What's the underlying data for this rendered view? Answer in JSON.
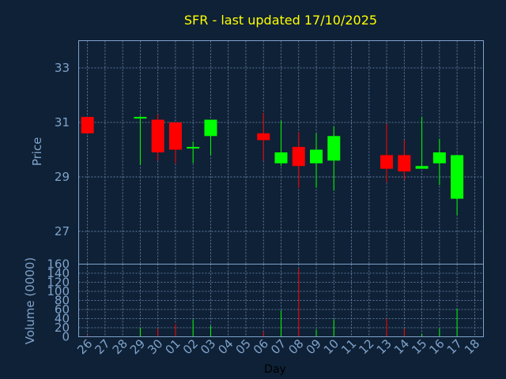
{
  "chart_data": [
    {
      "type": "candlestick",
      "title": "SFR - last updated 17/10/2025",
      "ylabel": "Price",
      "xlabel": "Day",
      "ylim": [
        25.8,
        34.0
      ],
      "yticks": [
        27,
        29,
        31,
        33
      ],
      "grid": true,
      "up_color": "#00ff00",
      "down_color": "#ff0000",
      "categories": [
        "26",
        "27",
        "28",
        "29",
        "30",
        "01",
        "02",
        "03",
        "04",
        "05",
        "06",
        "07",
        "08",
        "09",
        "10",
        "11",
        "12",
        "13",
        "14",
        "15",
        "16",
        "17",
        "18"
      ],
      "candles": [
        {
          "day": "26",
          "open": 31.2,
          "high": 31.2,
          "low": 30.6,
          "close": 30.6
        },
        {
          "day": "29",
          "open": 31.2,
          "high": 31.25,
          "low": 29.45,
          "close": 31.2
        },
        {
          "day": "30",
          "open": 31.1,
          "high": 31.3,
          "low": 29.6,
          "close": 29.9
        },
        {
          "day": "01",
          "open": 31.0,
          "high": 31.0,
          "low": 29.5,
          "close": 30.0
        },
        {
          "day": "02",
          "open": 30.05,
          "high": 30.3,
          "low": 29.5,
          "close": 30.1
        },
        {
          "day": "03",
          "open": 30.5,
          "high": 31.1,
          "low": 29.8,
          "close": 31.1
        },
        {
          "day": "06",
          "open": 30.6,
          "high": 31.35,
          "low": 29.6,
          "close": 30.35
        },
        {
          "day": "07",
          "open": 29.5,
          "high": 31.05,
          "low": 29.4,
          "close": 29.9
        },
        {
          "day": "08",
          "open": 30.1,
          "high": 30.65,
          "low": 28.6,
          "close": 29.4
        },
        {
          "day": "09",
          "open": 29.5,
          "high": 30.6,
          "low": 28.6,
          "close": 30.0
        },
        {
          "day": "10",
          "open": 29.6,
          "high": 30.85,
          "low": 28.5,
          "close": 30.5
        },
        {
          "day": "13",
          "open": 29.8,
          "high": 30.95,
          "low": 28.8,
          "close": 29.3
        },
        {
          "day": "14",
          "open": 29.8,
          "high": 30.35,
          "low": 28.9,
          "close": 29.2
        },
        {
          "day": "15",
          "open": 29.3,
          "high": 31.2,
          "low": 29.3,
          "close": 29.4
        },
        {
          "day": "16",
          "open": 29.5,
          "high": 30.4,
          "low": 28.7,
          "close": 29.9
        },
        {
          "day": "17",
          "open": 28.2,
          "high": 29.8,
          "low": 27.6,
          "close": 29.8
        }
      ]
    },
    {
      "type": "bar",
      "ylabel": "Volume (0000)",
      "xlabel": "Day",
      "ylim": [
        0,
        160
      ],
      "yticks": [
        0,
        20,
        40,
        60,
        80,
        100,
        120,
        140,
        160
      ],
      "grid": true,
      "categories": [
        "26",
        "27",
        "28",
        "29",
        "30",
        "01",
        "02",
        "03",
        "04",
        "05",
        "06",
        "07",
        "08",
        "09",
        "10",
        "11",
        "12",
        "13",
        "14",
        "15",
        "16",
        "17",
        "18"
      ],
      "volumes": [
        {
          "day": "26",
          "value": 3,
          "color": "#ff0000"
        },
        {
          "day": "29",
          "value": 20,
          "color": "#00ff00"
        },
        {
          "day": "30",
          "value": 18,
          "color": "#ff0000"
        },
        {
          "day": "01",
          "value": 28,
          "color": "#ff0000"
        },
        {
          "day": "02",
          "value": 38,
          "color": "#00ff00"
        },
        {
          "day": "03",
          "value": 24,
          "color": "#00ff00"
        },
        {
          "day": "06",
          "value": 12,
          "color": "#ff0000"
        },
        {
          "day": "07",
          "value": 58,
          "color": "#00ff00"
        },
        {
          "day": "08",
          "value": 150,
          "color": "#ff0000"
        },
        {
          "day": "09",
          "value": 16,
          "color": "#00ff00"
        },
        {
          "day": "10",
          "value": 38,
          "color": "#00ff00"
        },
        {
          "day": "13",
          "value": 40,
          "color": "#ff0000"
        },
        {
          "day": "14",
          "value": 18,
          "color": "#ff0000"
        },
        {
          "day": "15",
          "value": 6,
          "color": "#00ff00"
        },
        {
          "day": "16",
          "value": 18,
          "color": "#00ff00"
        },
        {
          "day": "17",
          "value": 62,
          "color": "#00ff00"
        }
      ]
    }
  ]
}
